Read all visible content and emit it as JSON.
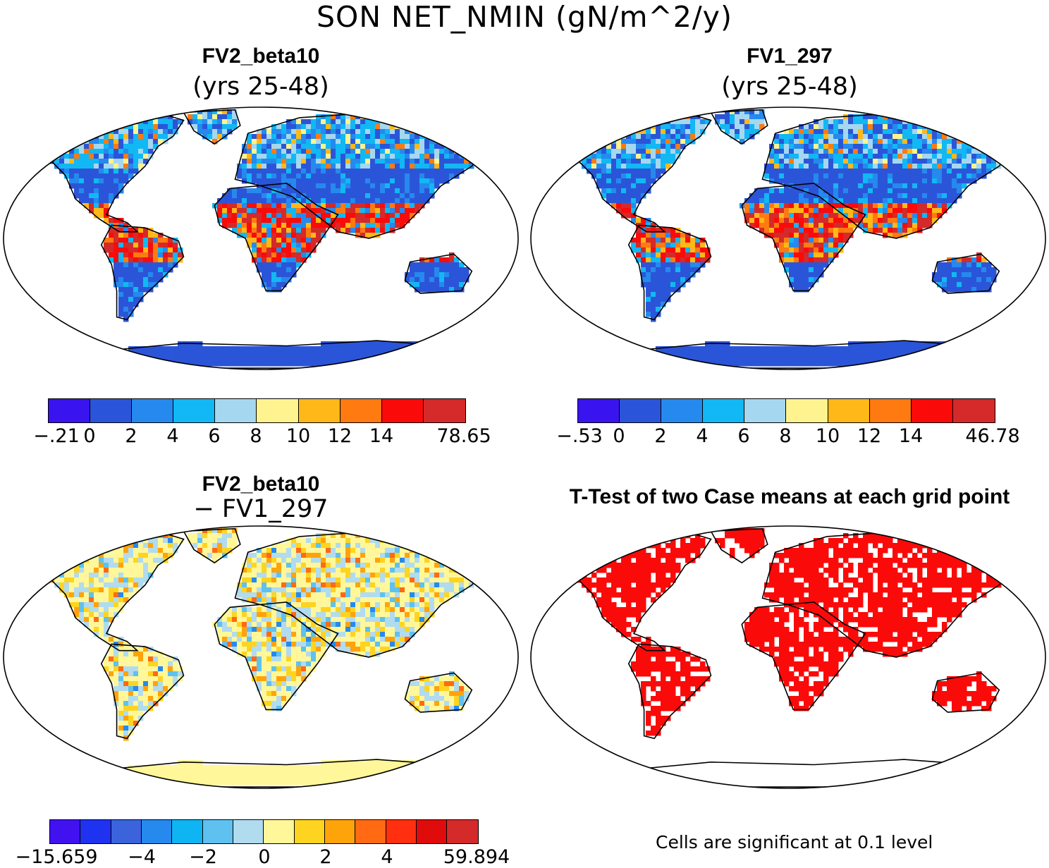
{
  "figure": {
    "title": "SON NET_NMIN (gN/m^2/y)",
    "note": "Cells are significant at 0.1 level"
  },
  "panels": [
    {
      "id": "top-left",
      "title": "FV2_beta10",
      "subtitle": "(yrs 25-48)"
    },
    {
      "id": "top-right",
      "title": "FV1_297",
      "subtitle": "(yrs 25-48)"
    },
    {
      "id": "bottom-left",
      "title": "FV2_beta10",
      "subtitle": "− FV1_297"
    },
    {
      "id": "bottom-right",
      "title": "T-Test of two Case means at each grid point",
      "subtitle": ""
    }
  ],
  "colorbars": {
    "top_left": {
      "colors": [
        "#3a14ef",
        "#2b55d8",
        "#2589ee",
        "#11b8f3",
        "#a6d7f0",
        "#fff38f",
        "#ffb817",
        "#ff7a10",
        "#fb0a0a",
        "#d42a2a"
      ],
      "labels": [
        "−.21",
        "0",
        "2",
        "4",
        "6",
        "8",
        "10",
        "12",
        "14",
        "78.65"
      ]
    },
    "top_right": {
      "colors": [
        "#3a14ef",
        "#2b55d8",
        "#2589ee",
        "#11b8f3",
        "#a6d7f0",
        "#fff38f",
        "#ffb817",
        "#ff7a10",
        "#fb0a0a",
        "#d42a2a"
      ],
      "labels": [
        "−.53",
        "0",
        "2",
        "4",
        "6",
        "8",
        "10",
        "12",
        "14",
        "46.78"
      ]
    },
    "bottom_left": {
      "colors": [
        "#4112ef",
        "#1f32ef",
        "#3b63dc",
        "#2589ee",
        "#0fb4f2",
        "#5ec1f0",
        "#b1dbef",
        "#fff79a",
        "#ffd420",
        "#ffa30a",
        "#ff6a12",
        "#ff2f10",
        "#e00c0c",
        "#d42a2a"
      ],
      "labels": [
        "−15.659",
        "−4",
        "−2",
        "0",
        "2",
        "4",
        "59.894"
      ]
    }
  },
  "map_colors": {
    "top_left_base": "#2b55d8",
    "top_right_base": "#2b55d8",
    "bottom_left_base": "#fff79a",
    "bottom_right_sig": "#fb0a0a"
  }
}
